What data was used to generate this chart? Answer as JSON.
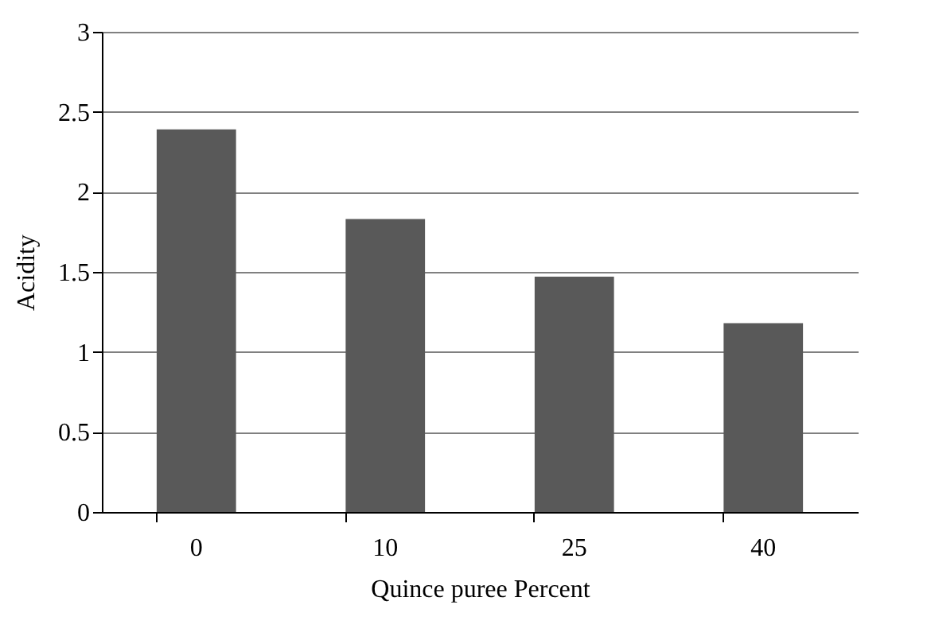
{
  "chart_data": {
    "type": "bar",
    "xlabel": "Quince puree Percent",
    "ylabel": "Acidity",
    "categories": [
      "0",
      "10",
      "25",
      "40"
    ],
    "values": [
      2.39,
      1.83,
      1.47,
      1.18
    ],
    "color": "#595959",
    "ylim": [
      0,
      3
    ],
    "yticks": [
      0,
      0.5,
      1,
      1.5,
      2,
      2.5,
      3
    ],
    "grid": "y"
  }
}
